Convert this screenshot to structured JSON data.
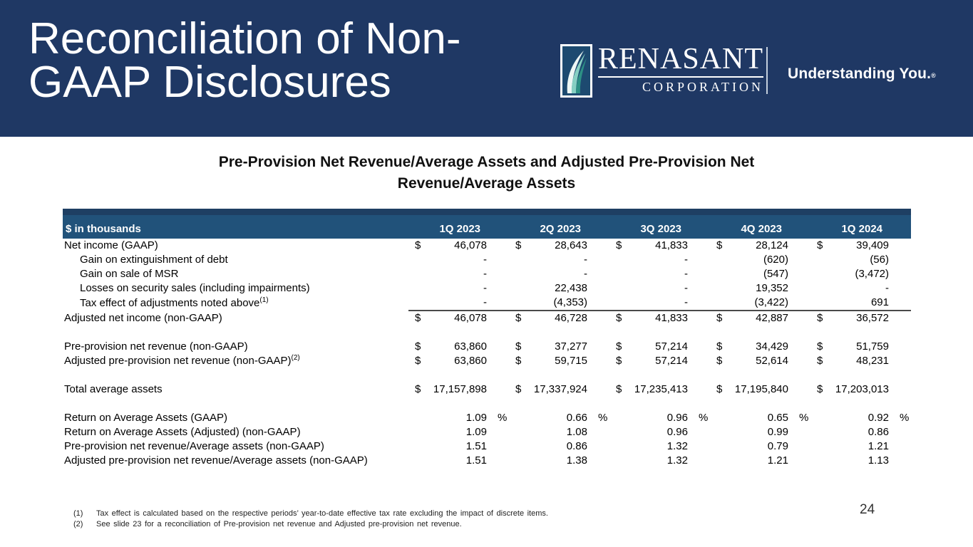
{
  "slide": {
    "title": "Reconciliation of Non-\nGAAP Disclosures",
    "page_number": "24"
  },
  "logo": {
    "name": "RENASANT",
    "subtitle": "CORPORATION",
    "tagline": "Understanding You.",
    "registered_mark": "®"
  },
  "table": {
    "title": "Pre-Provision Net Revenue/Average Assets and Adjusted Pre-Provision Net\nRevenue/Average Assets",
    "unit_label": "$ in thousands",
    "columns": [
      "1Q 2023",
      "2Q 2023",
      "3Q 2023",
      "4Q 2023",
      "1Q 2024"
    ],
    "rows": [
      {
        "label": "Net income (GAAP)",
        "dollar": true,
        "values": [
          "46,078",
          "28,643",
          "41,833",
          "28,124",
          "39,409"
        ]
      },
      {
        "label": "Gain on extinguishment of debt",
        "indent": true,
        "values": [
          "-",
          "-",
          "-",
          "(620)",
          "(56)"
        ]
      },
      {
        "label": "Gain on sale of MSR",
        "indent": true,
        "values": [
          "-",
          "-",
          "-",
          "(547)",
          "(3,472)"
        ]
      },
      {
        "label": "Losses on security sales (including impairments)",
        "indent": true,
        "values": [
          "-",
          "22,438",
          "-",
          "19,352",
          "-"
        ]
      },
      {
        "label": "Tax effect of adjustments noted above",
        "sup": "(1)",
        "indent": true,
        "values": [
          "-",
          "(4,353)",
          "-",
          "(3,422)",
          "691"
        ]
      },
      {
        "label": "Adjusted net income (non-GAAP)",
        "dollar": true,
        "rule": true,
        "values": [
          "46,078",
          "46,728",
          "41,833",
          "42,887",
          "36,572"
        ]
      },
      {
        "spacer": true
      },
      {
        "label": "Pre-provision net revenue (non-GAAP)",
        "dollar": true,
        "values": [
          "63,860",
          "37,277",
          "57,214",
          "34,429",
          "51,759"
        ]
      },
      {
        "label": "Adjusted pre-provision net revenue (non-GAAP)",
        "sup": "(2)",
        "dollar": true,
        "values": [
          "63,860",
          "59,715",
          "57,214",
          "52,614",
          "48,231"
        ]
      },
      {
        "spacer": true
      },
      {
        "label": "Total average assets",
        "dollar": true,
        "values": [
          "17,157,898",
          "17,337,924",
          "17,235,413",
          "17,195,840",
          "17,203,013"
        ]
      },
      {
        "spacer": true
      },
      {
        "label": "Return on Average Assets (GAAP)",
        "pct": true,
        "values": [
          "1.09",
          "0.66",
          "0.96",
          "0.65",
          "0.92"
        ]
      },
      {
        "label": "Return on Average Assets (Adjusted) (non-GAAP)",
        "values": [
          "1.09",
          "1.08",
          "0.96",
          "0.99",
          "0.86"
        ]
      },
      {
        "label": "Pre-provision net revenue/Average assets (non-GAAP)",
        "values": [
          "1.51",
          "0.86",
          "1.32",
          "0.79",
          "1.21"
        ]
      },
      {
        "label": "Adjusted pre-provision net revenue/Average assets (non-GAAP)",
        "values": [
          "1.51",
          "1.38",
          "1.32",
          "1.21",
          "1.13"
        ]
      }
    ]
  },
  "footnotes": [
    {
      "num": "(1)",
      "text": "Tax effect is calculated based on the respective periods’ year-to-date effective tax rate excluding the impact of discrete items."
    },
    {
      "num": "(2)",
      "text": "See slide 23 for a reconciliation of Pre-provision net revenue and Adjusted pre-provision net revenue."
    }
  ],
  "colors": {
    "banner_navy": "#1f3864",
    "table_header_blue": "#21527a",
    "leaf_teal": "#2d9185",
    "leaf_seafoam": "#86cfc2",
    "rule_gray": "#4a4a4a"
  }
}
